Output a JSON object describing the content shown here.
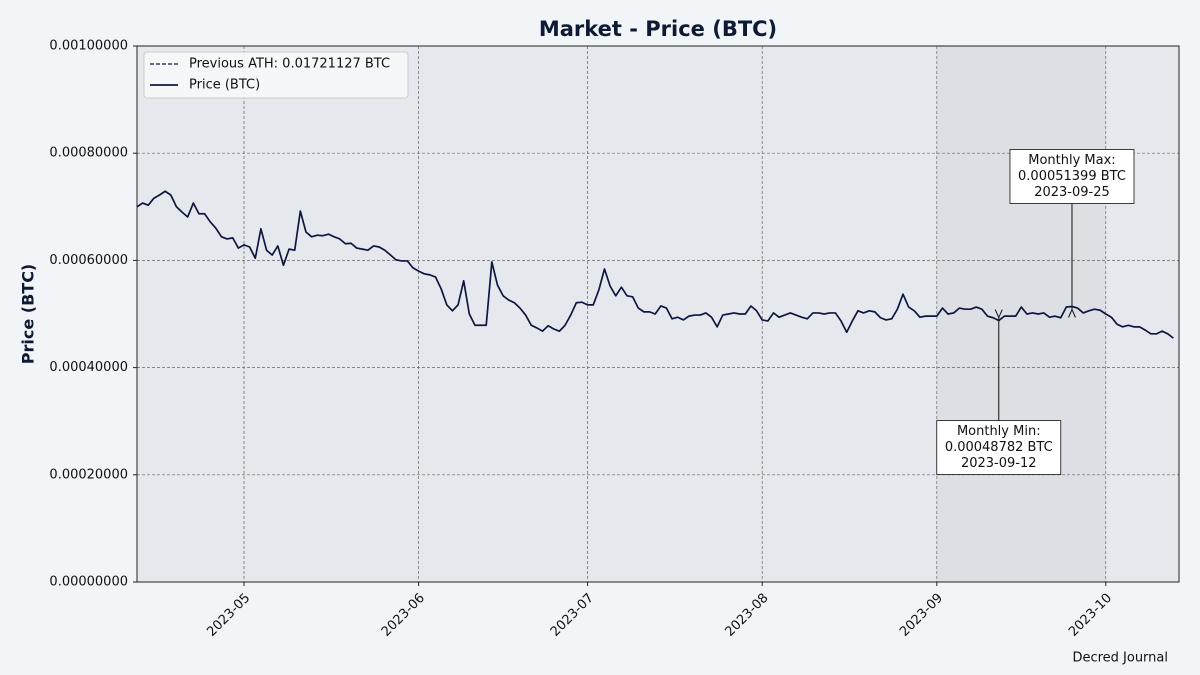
{
  "chart_data": {
    "type": "line",
    "title": "Market - Price (BTC)",
    "y_label": "Price (BTC)",
    "footer": "Decred Journal",
    "x": [
      "2023-04-12",
      "2023-04-13",
      "2023-04-14",
      "2023-04-15",
      "2023-04-16",
      "2023-04-17",
      "2023-04-18",
      "2023-04-19",
      "2023-04-20",
      "2023-04-21",
      "2023-04-22",
      "2023-04-23",
      "2023-04-24",
      "2023-04-25",
      "2023-04-26",
      "2023-04-27",
      "2023-04-28",
      "2023-04-29",
      "2023-04-30",
      "2023-05-01",
      "2023-05-02",
      "2023-05-03",
      "2023-05-04",
      "2023-05-05",
      "2023-05-06",
      "2023-05-07",
      "2023-05-08",
      "2023-05-09",
      "2023-05-10",
      "2023-05-11",
      "2023-05-12",
      "2023-05-13",
      "2023-05-14",
      "2023-05-15",
      "2023-05-16",
      "2023-05-17",
      "2023-05-18",
      "2023-05-19",
      "2023-05-20",
      "2023-05-21",
      "2023-05-22",
      "2023-05-23",
      "2023-05-24",
      "2023-05-25",
      "2023-05-26",
      "2023-05-27",
      "2023-05-28",
      "2023-05-29",
      "2023-05-30",
      "2023-05-31",
      "2023-06-01",
      "2023-06-02",
      "2023-06-03",
      "2023-06-04",
      "2023-06-05",
      "2023-06-06",
      "2023-06-07",
      "2023-06-08",
      "2023-06-09",
      "2023-06-10",
      "2023-06-11",
      "2023-06-12",
      "2023-06-13",
      "2023-06-14",
      "2023-06-15",
      "2023-06-16",
      "2023-06-17",
      "2023-06-18",
      "2023-06-19",
      "2023-06-20",
      "2023-06-21",
      "2023-06-22",
      "2023-06-23",
      "2023-06-24",
      "2023-06-25",
      "2023-06-26",
      "2023-06-27",
      "2023-06-28",
      "2023-06-29",
      "2023-06-30",
      "2023-07-01",
      "2023-07-02",
      "2023-07-03",
      "2023-07-04",
      "2023-07-05",
      "2023-07-06",
      "2023-07-07",
      "2023-07-08",
      "2023-07-09",
      "2023-07-10",
      "2023-07-11",
      "2023-07-12",
      "2023-07-13",
      "2023-07-14",
      "2023-07-15",
      "2023-07-16",
      "2023-07-17",
      "2023-07-18",
      "2023-07-19",
      "2023-07-20",
      "2023-07-21",
      "2023-07-22",
      "2023-07-23",
      "2023-07-24",
      "2023-07-25",
      "2023-07-26",
      "2023-07-27",
      "2023-07-28",
      "2023-07-29",
      "2023-07-30",
      "2023-07-31",
      "2023-08-01",
      "2023-08-02",
      "2023-08-03",
      "2023-08-04",
      "2023-08-05",
      "2023-08-06",
      "2023-08-07",
      "2023-08-08",
      "2023-08-09",
      "2023-08-10",
      "2023-08-11",
      "2023-08-12",
      "2023-08-13",
      "2023-08-14",
      "2023-08-15",
      "2023-08-16",
      "2023-08-17",
      "2023-08-18",
      "2023-08-19",
      "2023-08-20",
      "2023-08-21",
      "2023-08-22",
      "2023-08-23",
      "2023-08-24",
      "2023-08-25",
      "2023-08-26",
      "2023-08-27",
      "2023-08-28",
      "2023-08-29",
      "2023-08-30",
      "2023-08-31",
      "2023-09-01",
      "2023-09-02",
      "2023-09-03",
      "2023-09-04",
      "2023-09-05",
      "2023-09-06",
      "2023-09-07",
      "2023-09-08",
      "2023-09-09",
      "2023-09-10",
      "2023-09-11",
      "2023-09-12",
      "2023-09-13",
      "2023-09-14",
      "2023-09-15",
      "2023-09-16",
      "2023-09-17",
      "2023-09-18",
      "2023-09-19",
      "2023-09-20",
      "2023-09-21",
      "2023-09-22",
      "2023-09-23",
      "2023-09-24",
      "2023-09-25",
      "2023-09-26",
      "2023-09-27",
      "2023-09-28",
      "2023-09-29",
      "2023-09-30",
      "2023-10-01",
      "2023-10-02",
      "2023-10-03",
      "2023-10-04",
      "2023-10-05",
      "2023-10-06",
      "2023-10-07",
      "2023-10-08",
      "2023-10-09",
      "2023-10-10",
      "2023-10-11",
      "2023-10-12",
      "2023-10-13"
    ],
    "series": [
      {
        "name": "Price (BTC)",
        "color": "#0d1740",
        "values": [
          0.0007,
          0.000707,
          0.000703,
          0.000716,
          0.000722,
          0.000729,
          0.000722,
          0.0007,
          0.00069,
          0.000681,
          0.000707,
          0.000687,
          0.000687,
          0.000672,
          0.00066,
          0.000644,
          0.00064,
          0.000642,
          0.000623,
          0.000629,
          0.000625,
          0.000604,
          0.000659,
          0.000619,
          0.00061,
          0.000627,
          0.000591,
          0.000621,
          0.000619,
          0.000692,
          0.000653,
          0.000644,
          0.000647,
          0.000646,
          0.000649,
          0.000644,
          0.00064,
          0.000631,
          0.000632,
          0.000623,
          0.000621,
          0.000619,
          0.000627,
          0.000625,
          0.000619,
          0.00061,
          0.000601,
          0.000599,
          0.000599,
          0.000586,
          0.00058,
          0.000575,
          0.000573,
          0.000569,
          0.000547,
          0.000517,
          0.000506,
          0.000517,
          0.000562,
          0.0005,
          0.000479,
          0.000479,
          0.000479,
          0.000597,
          0.000554,
          0.000534,
          0.000526,
          0.000521,
          0.000511,
          0.000498,
          0.000479,
          0.000474,
          0.000468,
          0.000478,
          0.000472,
          0.000468,
          0.000479,
          0.000498,
          0.000521,
          0.000522,
          0.000517,
          0.000517,
          0.000545,
          0.000584,
          0.000552,
          0.000534,
          0.00055,
          0.000534,
          0.000532,
          0.000511,
          0.000504,
          0.000504,
          0.0005,
          0.000515,
          0.000511,
          0.000491,
          0.000494,
          0.000489,
          0.000496,
          0.000498,
          0.000498,
          0.000502,
          0.000494,
          0.000476,
          0.000498,
          0.0005,
          0.000502,
          0.0005,
          0.0005,
          0.000515,
          0.000506,
          0.000489,
          0.000487,
          0.000502,
          0.000494,
          0.000498,
          0.000502,
          0.000498,
          0.000494,
          0.000491,
          0.000502,
          0.000502,
          0.0005,
          0.000502,
          0.000502,
          0.000487,
          0.000466,
          0.000487,
          0.000506,
          0.000502,
          0.000506,
          0.000504,
          0.000493,
          0.000489,
          0.000491,
          0.000509,
          0.000537,
          0.000513,
          0.000506,
          0.000494,
          0.000496,
          0.000496,
          0.000496,
          0.000511,
          0.0005,
          0.000502,
          0.000511,
          0.000509,
          0.000509,
          0.000513,
          0.000509,
          0.000496,
          0.000493,
          0.00048782,
          0.000496,
          0.000496,
          0.000496,
          0.000513,
          0.0005,
          0.000502,
          0.0005,
          0.000502,
          0.000494,
          0.000496,
          0.000493,
          0.000513,
          0.00051399,
          0.000511,
          0.000502,
          0.000506,
          0.000509,
          0.000507,
          0.0005,
          0.000494,
          0.000481,
          0.000476,
          0.000479,
          0.000476,
          0.000476,
          0.00047,
          0.000463,
          0.000463,
          0.000468,
          0.000463,
          0.000455
        ]
      }
    ],
    "reference_line": {
      "name": "Previous ATH: 0.01721127 BTC",
      "value": 0.01721127,
      "color": "#0d1740",
      "style": "dashed"
    },
    "annotations": [
      {
        "lines": [
          "Monthly Max:",
          "0.00051399 BTC",
          "2023-09-25"
        ],
        "x": "2023-09-25",
        "y": 0.00051399
      },
      {
        "lines": [
          "Monthly Min:",
          "0.00048782 BTC",
          "2023-09-12"
        ],
        "x": "2023-09-12",
        "y": 0.00048782
      }
    ],
    "highlight": [
      "2023-09-01",
      "2023-10-01"
    ],
    "xlim": [
      "2023-04-12",
      "2023-10-14"
    ],
    "xticks": [
      {
        "value": "2023-05-01",
        "label": "2023-05"
      },
      {
        "value": "2023-06-01",
        "label": "2023-06"
      },
      {
        "value": "2023-07-01",
        "label": "2023-07"
      },
      {
        "value": "2023-08-01",
        "label": "2023-08"
      },
      {
        "value": "2023-09-01",
        "label": "2023-09"
      },
      {
        "value": "2023-10-01",
        "label": "2023-10"
      }
    ],
    "ylim": [
      0,
      0.001
    ],
    "yticks": [
      {
        "value": 0,
        "label": "0.00000000"
      },
      {
        "value": 0.0002,
        "label": "0.00020000"
      },
      {
        "value": 0.0004,
        "label": "0.00040000"
      },
      {
        "value": 0.0006,
        "label": "0.00060000"
      },
      {
        "value": 0.0008,
        "label": "0.00080000"
      },
      {
        "value": 0.001,
        "label": "0.00100000"
      }
    ],
    "grid": true,
    "legend": "upper-left"
  }
}
